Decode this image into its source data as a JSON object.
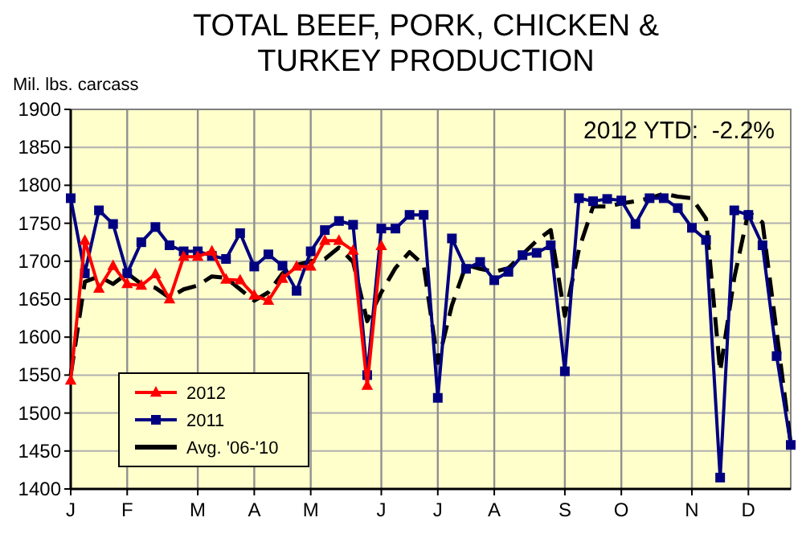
{
  "chart_data": {
    "type": "line",
    "title": "TOTAL BEEF, PORK, CHICKEN & TURKEY PRODUCTION",
    "ylabel": "Mil. lbs. carcass",
    "annotations": [
      "2012 YTD:  -2.2%"
    ],
    "categories": [
      "J",
      null,
      null,
      null,
      "F",
      null,
      null,
      null,
      null,
      "M",
      null,
      null,
      null,
      "A",
      null,
      null,
      null,
      "M",
      null,
      null,
      null,
      null,
      "J",
      null,
      null,
      null,
      "J",
      null,
      null,
      null,
      "A",
      null,
      null,
      null,
      null,
      "S",
      null,
      null,
      null,
      "O",
      null,
      null,
      null,
      null,
      "N",
      null,
      null,
      null,
      "D",
      null,
      null,
      null
    ],
    "ylim": [
      1400,
      1900
    ],
    "yticks": [
      1400,
      1450,
      1500,
      1550,
      1600,
      1650,
      1700,
      1750,
      1800,
      1850,
      1900
    ],
    "grid": true,
    "legend": "bottom left",
    "series": [
      {
        "name": "2012",
        "color": "#ff0000",
        "marker": "triangle",
        "line_style": "solid",
        "values": [
          1543,
          1727,
          1664,
          1694,
          1670,
          1668,
          1683,
          1650,
          1706,
          1706,
          1713,
          1676,
          1675,
          1655,
          1648,
          1677,
          1693,
          1693,
          1727,
          1727,
          1714,
          1536,
          1720,
          null,
          null,
          null,
          null,
          null,
          null,
          null,
          null,
          null,
          null,
          null,
          null,
          null,
          null,
          null,
          null,
          null,
          null,
          null,
          null,
          null,
          null,
          null,
          null,
          null,
          null,
          null,
          null,
          null
        ]
      },
      {
        "name": "2011",
        "color": "#000080",
        "marker": "square",
        "line_style": "solid",
        "values": [
          1783,
          1684,
          1767,
          1749,
          1684,
          1725,
          1745,
          1721,
          1713,
          1713,
          1707,
          1703,
          1737,
          1693,
          1709,
          1694,
          1661,
          1713,
          1741,
          1753,
          1748,
          1550,
          1743,
          1743,
          1761,
          1761,
          1520,
          1730,
          1690,
          1699,
          1675,
          1686,
          1708,
          1711,
          1721,
          1555,
          1783,
          1779,
          1782,
          1780,
          1749,
          1783,
          1783,
          1770,
          1744,
          1728,
          1415,
          1767,
          1761,
          1721,
          1575,
          1458
        ]
      },
      {
        "name": "Avg. '06-'10",
        "color": "#000000",
        "marker": "none",
        "line_style": "dashed",
        "values": [
          1550,
          1673,
          1680,
          1670,
          1684,
          1670,
          1665,
          1652,
          1663,
          1668,
          1680,
          1678,
          1663,
          1648,
          1659,
          1684,
          1695,
          1700,
          1703,
          1718,
          1699,
          1621,
          1659,
          1691,
          1712,
          1695,
          1566,
          1642,
          1695,
          1690,
          1686,
          1691,
          1709,
          1727,
          1741,
          1628,
          1716,
          1772,
          1772,
          1776,
          1779,
          1783,
          1789,
          1785,
          1783,
          1756,
          1555,
          1678,
          1765,
          1751,
          1607,
          1460
        ]
      }
    ]
  }
}
